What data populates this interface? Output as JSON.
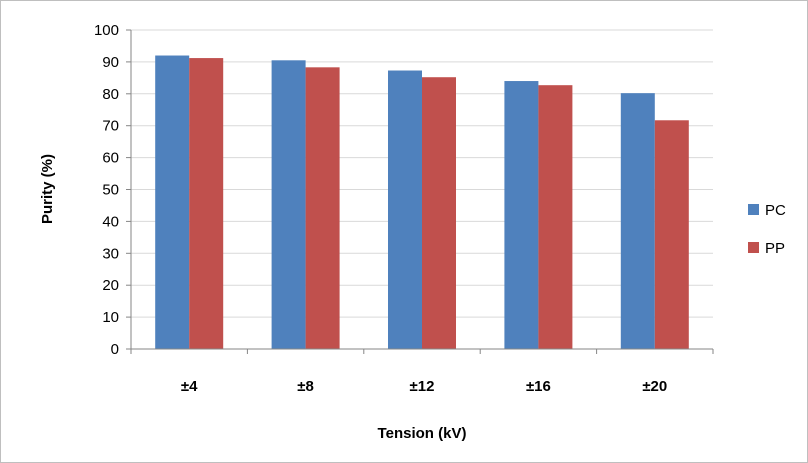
{
  "chart_data": {
    "type": "bar",
    "title": "",
    "xlabel": "Tension (kV)",
    "ylabel": "Purity (%)",
    "ylim": [
      0,
      100
    ],
    "yticks": [
      "0",
      "10",
      "20",
      "30",
      "40",
      "50",
      "60",
      "70",
      "80",
      "90",
      "100"
    ],
    "categories": [
      "±4",
      "±8",
      "±12",
      "±16",
      "±20"
    ],
    "series": [
      {
        "name": "PC",
        "color": "#4f81bd",
        "values": [
          92,
          90.5,
          87.3,
          84,
          80.2
        ]
      },
      {
        "name": "PP",
        "color": "#c0504d",
        "values": [
          91.2,
          88.3,
          85.2,
          82.7,
          71.7
        ]
      }
    ],
    "grid": true,
    "legend_position": "right"
  }
}
